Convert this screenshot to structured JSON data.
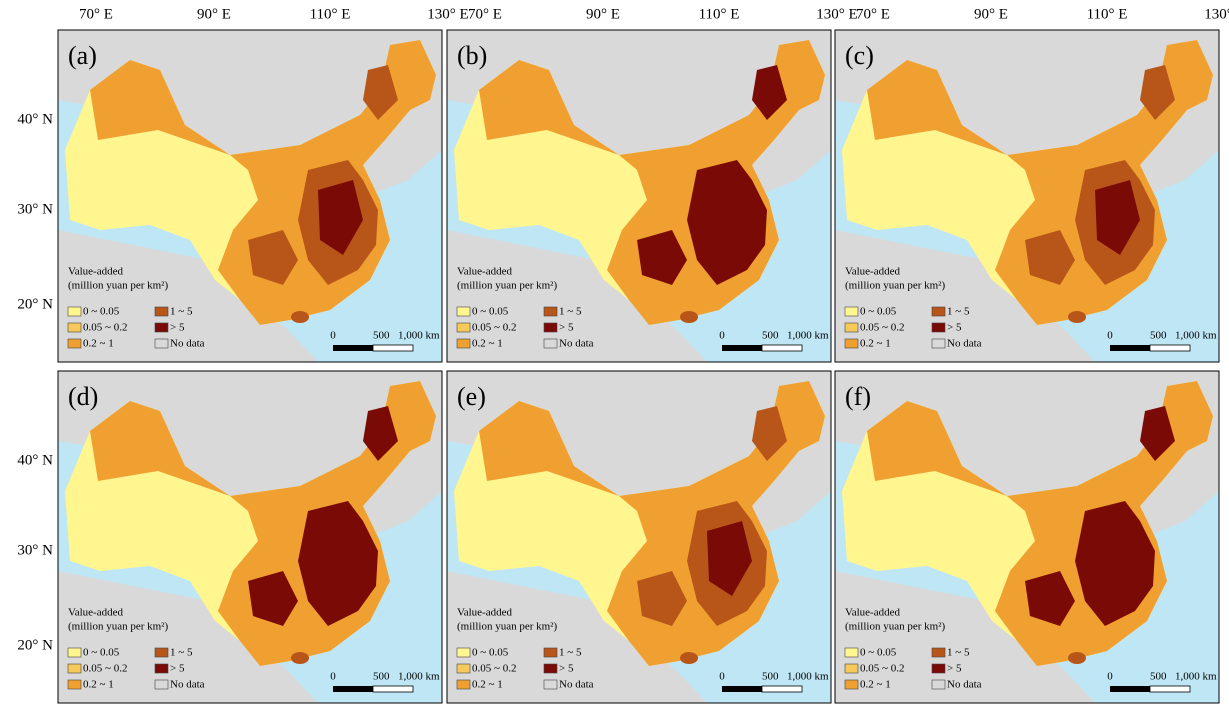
{
  "top_axis": {
    "labels": [
      "70° E",
      "90° E",
      "110° E",
      "130° E"
    ]
  },
  "left_axis": {
    "labels": [
      "40° N",
      "30° N",
      "20° N"
    ]
  },
  "panels": [
    {
      "label": "(a)"
    },
    {
      "label": "(b)"
    },
    {
      "label": "(c)"
    },
    {
      "label": "(d)"
    },
    {
      "label": "(e)"
    },
    {
      "label": "(f)"
    }
  ],
  "legend": {
    "title": "Value-added",
    "subtitle": "(million yuan per km²)",
    "items": [
      {
        "label": "0 ~ 0.05",
        "color": "#fff68f"
      },
      {
        "label": "0.05 ~ 0.2",
        "color": "#f7c85a"
      },
      {
        "label": "0.2 ~ 1",
        "color": "#f0a030"
      },
      {
        "label": "1 ~ 5",
        "color": "#b8561a"
      },
      {
        "label": "> 5",
        "color": "#7a0a05"
      },
      {
        "label": "No data",
        "color": "#d9d9d9"
      }
    ]
  },
  "scale_bar": {
    "labels": [
      "0",
      "500",
      "1,000 km"
    ]
  }
}
